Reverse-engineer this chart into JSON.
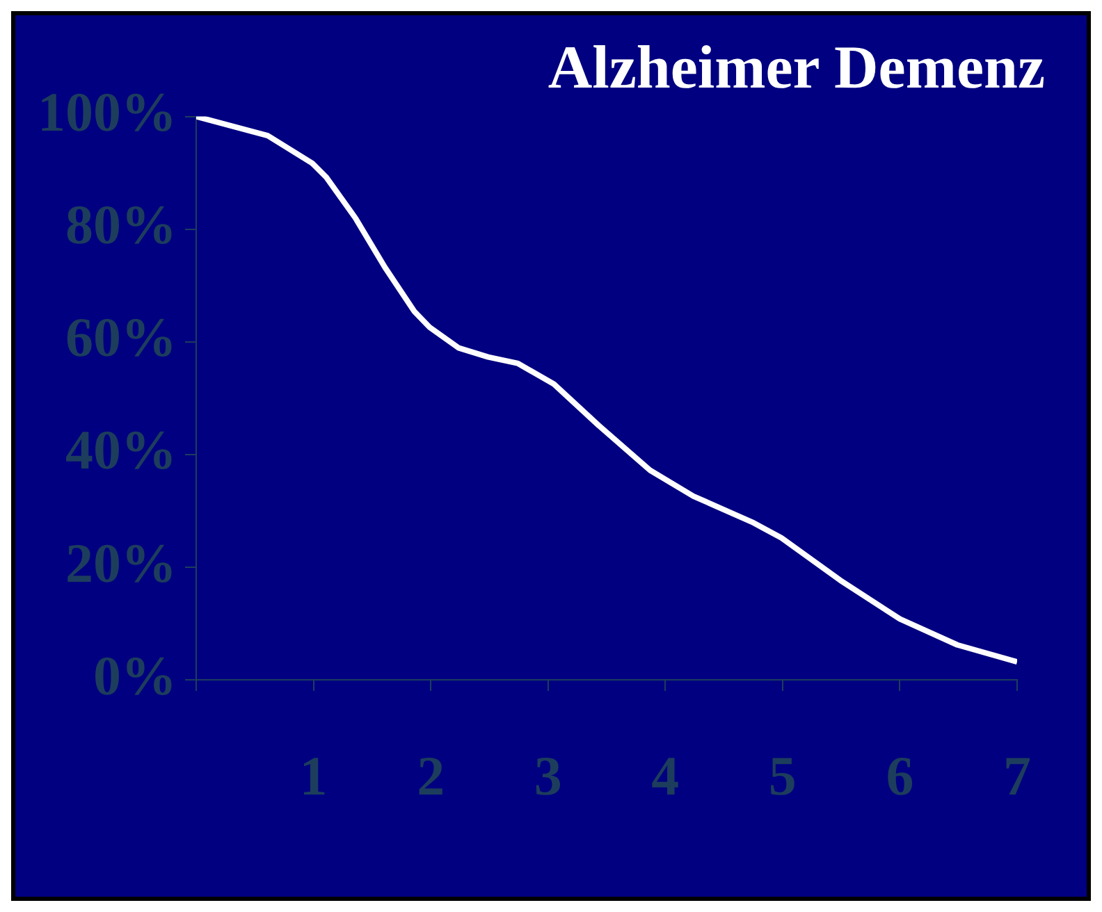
{
  "chart_data": {
    "type": "line",
    "title": "Alzheimer Demenz",
    "x": [
      0,
      0.61,
      0.99,
      1.11,
      1.36,
      1.61,
      1.86,
      1.99,
      2.24,
      2.49,
      2.74,
      3.05,
      3.43,
      3.87,
      4.24,
      4.74,
      4.99,
      5.49,
      6.0,
      6.49,
      7.0
    ],
    "series": [
      {
        "color": "#ffffff",
        "values": [
          100,
          96.6,
          91.7,
          89.2,
          81.9,
          73.2,
          65.4,
          62.6,
          58.9,
          57.3,
          56.2,
          52.5,
          45.2,
          37.2,
          32.6,
          28.0,
          25.2,
          17.7,
          10.8,
          6.2,
          3.2
        ]
      }
    ],
    "xlim": [
      0,
      7
    ],
    "xticks": [
      {
        "value": 0,
        "label": null
      },
      1,
      2,
      3,
      4,
      5,
      6,
      7
    ],
    "ylim": [
      0,
      100
    ],
    "yticks": [
      {
        "value": 0,
        "label": "0%"
      },
      {
        "value": 20,
        "label": "20%"
      },
      {
        "value": 40,
        "label": "40%"
      },
      {
        "value": 60,
        "label": "60%"
      },
      {
        "value": 80,
        "label": "80%"
      },
      {
        "value": 100,
        "label": "100%"
      }
    ],
    "grid": false,
    "legend": false,
    "marker": "none",
    "line_style": "solid"
  }
}
